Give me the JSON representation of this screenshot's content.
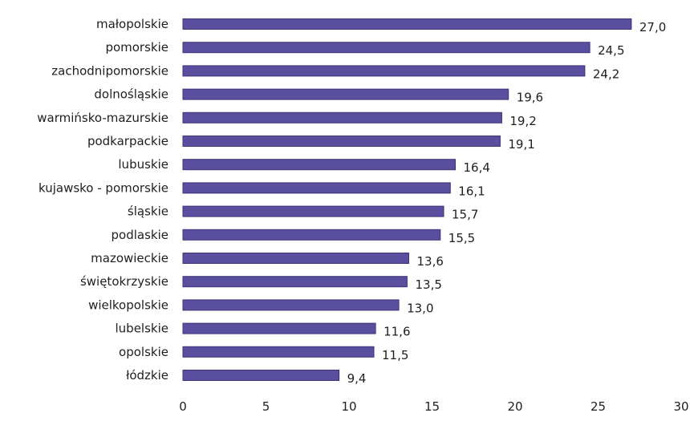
{
  "chart_data": {
    "type": "bar",
    "orientation": "horizontal",
    "categories": [
      "małopolskie",
      "pomorskie",
      "zachodnipomorskie",
      "dolnośląskie",
      "warmińsko-mazurskie",
      "podkarpackie",
      "lubuskie",
      "kujawsko - pomorskie",
      "śląskie",
      "podlaskie",
      "mazowieckie",
      "świętokrzyskie",
      "wielkopolskie",
      "lubelskie",
      "opolskie",
      "łódzkie"
    ],
    "values": [
      27.0,
      24.5,
      24.2,
      19.6,
      19.2,
      19.1,
      16.4,
      16.1,
      15.7,
      15.5,
      13.6,
      13.5,
      13.0,
      11.6,
      11.5,
      9.4
    ],
    "value_labels": [
      "27,0",
      "24,5",
      "24,2",
      "19,6",
      "19,2",
      "19,1",
      "16,4",
      "16,1",
      "15,7",
      "15,5",
      "13,6",
      "13,5",
      "13,0",
      "11,6",
      "11,5",
      "9,4"
    ],
    "xlim": [
      0,
      30
    ],
    "x_ticks": [
      0,
      5,
      10,
      15,
      20,
      25,
      30
    ],
    "x_tick_labels": [
      "0",
      "5",
      "10",
      "15",
      "20",
      "25",
      "30"
    ],
    "title": "",
    "xlabel": "",
    "ylabel": "",
    "grid": false,
    "legend": "none",
    "bar_color": "#5a4f9e",
    "bar_edge_color": "#3d3478"
  }
}
